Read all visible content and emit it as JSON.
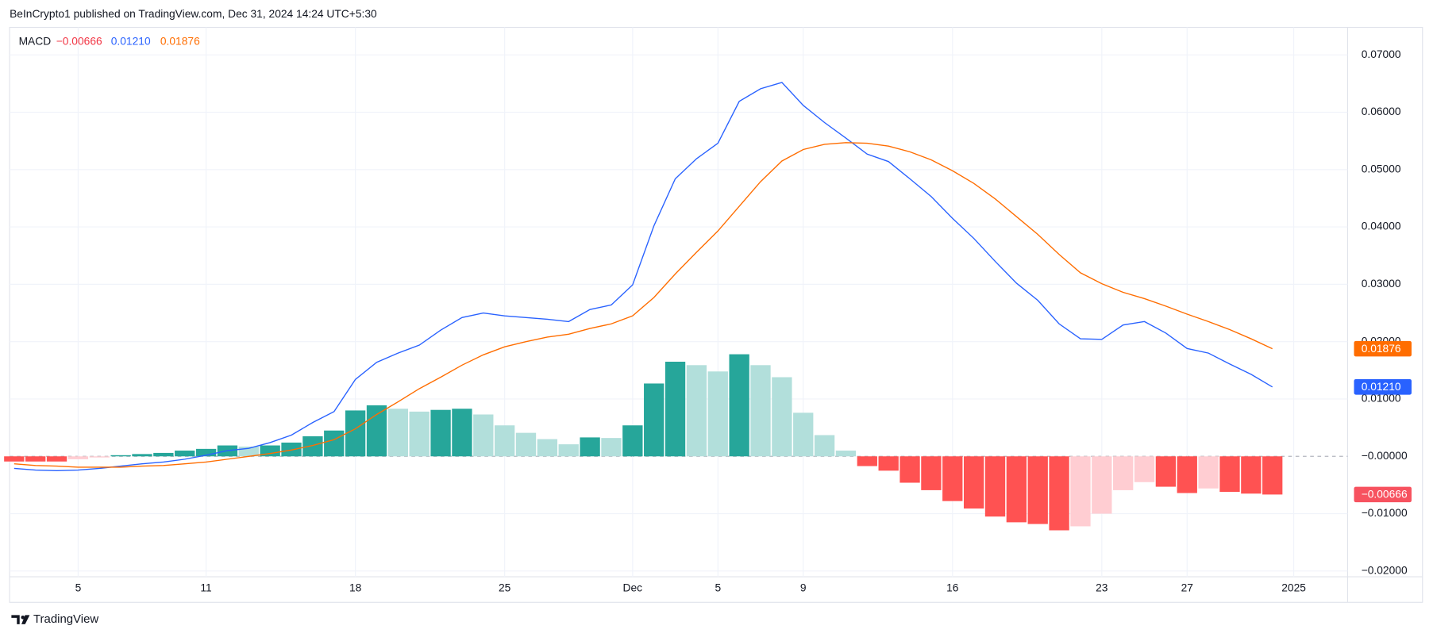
{
  "header": "BeInCrypto1 published on TradingView.com, Dec 31, 2024 14:24 UTC+5:30",
  "footer": "TradingView",
  "chart_data": {
    "type": "macd",
    "title": "MACD",
    "categories": [
      null,
      null,
      null,
      "5",
      null,
      null,
      null,
      null,
      null,
      "11",
      null,
      null,
      null,
      null,
      null,
      null,
      "18",
      null,
      null,
      null,
      null,
      null,
      null,
      "25",
      null,
      null,
      null,
      null,
      null,
      "Dec",
      null,
      null,
      null,
      "5",
      null,
      null,
      null,
      "9",
      null,
      null,
      null,
      null,
      null,
      null,
      "16",
      null,
      null,
      null,
      null,
      null,
      null,
      "23",
      null,
      null,
      null,
      "27",
      null,
      null,
      null,
      null,
      "2025"
    ],
    "series": [
      {
        "type": "bar",
        "values": [
          -0.0009,
          -0.0009,
          -0.0009,
          -0.0005,
          -0.0002,
          0.0002,
          0.0004,
          0.0006,
          0.001,
          0.0013,
          0.0019,
          0.0017,
          0.0019,
          0.0024,
          0.0035,
          0.0045,
          0.008,
          0.0089,
          0.0083,
          0.0078,
          0.0081,
          0.0083,
          0.0073,
          0.0054,
          0.0041,
          0.003,
          0.0021,
          0.0033,
          0.0032,
          0.0054,
          0.0127,
          0.0165,
          0.0159,
          0.0148,
          0.0178,
          0.0159,
          0.0138,
          0.0076,
          0.0037,
          0.001,
          -0.0017,
          -0.0025,
          -0.0046,
          -0.0059,
          -0.0078,
          -0.0091,
          -0.0105,
          -0.0115,
          -0.0118,
          -0.0129,
          -0.0122,
          -0.01,
          -0.0059,
          -0.0045,
          -0.0053,
          -0.0064,
          -0.0056,
          -0.0062,
          -0.0065,
          -0.00666,
          null
        ],
        "value_labels": [
          null,
          null,
          null,
          null,
          null,
          null,
          null,
          null,
          null,
          null,
          null,
          null,
          null,
          null,
          null,
          null,
          null,
          null,
          null,
          null,
          null,
          null,
          null,
          null,
          null,
          null,
          null,
          null,
          null,
          null,
          null,
          null,
          null,
          null,
          null,
          null,
          null,
          null,
          null,
          null,
          null,
          null,
          null,
          null,
          null,
          null,
          null,
          null,
          null,
          null,
          null,
          null,
          null,
          null,
          null,
          null,
          null,
          null,
          null,
          "−0.00666",
          null
        ],
        "color": "#f23645",
        "colors": [
          "#ff5252",
          "#ff5252",
          "#ff5252",
          "#ffcdd2",
          "#ffcdd2",
          "#26a69a",
          "#26a69a",
          "#26a69a",
          "#26a69a",
          "#26a69a",
          "#26a69a",
          "#b2dfdb",
          "#26a69a",
          "#26a69a",
          "#26a69a",
          "#26a69a",
          "#26a69a",
          "#26a69a",
          "#b2dfdb",
          "#b2dfdb",
          "#26a69a",
          "#26a69a",
          "#b2dfdb",
          "#b2dfdb",
          "#b2dfdb",
          "#b2dfdb",
          "#b2dfdb",
          "#26a69a",
          "#b2dfdb",
          "#26a69a",
          "#26a69a",
          "#26a69a",
          "#b2dfdb",
          "#b2dfdb",
          "#26a69a",
          "#b2dfdb",
          "#b2dfdb",
          "#b2dfdb",
          "#b2dfdb",
          "#b2dfdb",
          "#ff5252",
          "#ff5252",
          "#ff5252",
          "#ff5252",
          "#ff5252",
          "#ff5252",
          "#ff5252",
          "#ff5252",
          "#ff5252",
          "#ff5252",
          "#ffcdd2",
          "#ffcdd2",
          "#ffcdd2",
          "#ffcdd2",
          "#ff5252",
          "#ff5252",
          "#ffcdd2",
          "#ff5252",
          "#ff5252",
          "#ff5252",
          null
        ],
        "tag_color": "#f7525f"
      },
      {
        "type": "line",
        "color": "#2962ff",
        "values": [
          -0.0021,
          -0.0024,
          -0.0025,
          -0.0024,
          -0.0021,
          -0.0017,
          -0.0013,
          -0.001,
          -0.0005,
          0.0002,
          0.001,
          0.0014,
          0.0024,
          0.0037,
          0.0059,
          0.0078,
          0.0134,
          0.0164,
          0.018,
          0.0194,
          0.022,
          0.0242,
          0.025,
          0.0245,
          0.0242,
          0.0239,
          0.0235,
          0.0256,
          0.0264,
          0.0299,
          0.0402,
          0.0484,
          0.0519,
          0.0546,
          0.0619,
          0.0641,
          0.0652,
          0.0612,
          0.0582,
          0.0555,
          0.0527,
          0.0514,
          0.0484,
          0.0453,
          0.0415,
          0.038,
          0.034,
          0.0302,
          0.0272,
          0.0231,
          0.0205,
          0.0204,
          0.0229,
          0.0235,
          0.0215,
          0.0188,
          0.018,
          0.0161,
          0.0143,
          0.0121,
          null
        ],
        "value_labels": [
          null,
          null,
          null,
          null,
          null,
          null,
          null,
          null,
          null,
          null,
          null,
          null,
          null,
          null,
          null,
          null,
          null,
          null,
          null,
          null,
          null,
          null,
          null,
          null,
          null,
          null,
          null,
          null,
          null,
          null,
          null,
          null,
          null,
          null,
          null,
          null,
          null,
          null,
          null,
          null,
          null,
          null,
          null,
          null,
          null,
          null,
          null,
          null,
          null,
          null,
          null,
          null,
          null,
          null,
          null,
          null,
          null,
          null,
          null,
          "0.01210",
          null
        ]
      },
      {
        "type": "line",
        "color": "#ff6d00",
        "values": [
          -0.0013,
          -0.0016,
          -0.0017,
          -0.0019,
          -0.0019,
          -0.0019,
          -0.0017,
          -0.0016,
          -0.0013,
          -0.001,
          -0.0005,
          0.0,
          0.0005,
          0.0011,
          0.0019,
          0.0029,
          0.0048,
          0.0073,
          0.0095,
          0.0118,
          0.0138,
          0.0159,
          0.0177,
          0.0191,
          0.02,
          0.0208,
          0.0213,
          0.0223,
          0.0231,
          0.0245,
          0.0277,
          0.0318,
          0.0356,
          0.0393,
          0.0436,
          0.0479,
          0.0515,
          0.0535,
          0.0544,
          0.0547,
          0.0546,
          0.0541,
          0.0531,
          0.0517,
          0.0498,
          0.0476,
          0.0449,
          0.0418,
          0.0387,
          0.0352,
          0.032,
          0.0301,
          0.0286,
          0.0275,
          0.0262,
          0.0248,
          0.0235,
          0.0221,
          0.0205,
          0.01876,
          null
        ],
        "value_labels": [
          null,
          null,
          null,
          null,
          null,
          null,
          null,
          null,
          null,
          null,
          null,
          null,
          null,
          null,
          null,
          null,
          null,
          null,
          null,
          null,
          null,
          null,
          null,
          null,
          null,
          null,
          null,
          null,
          null,
          null,
          null,
          null,
          null,
          null,
          null,
          null,
          null,
          null,
          null,
          null,
          null,
          null,
          null,
          null,
          null,
          null,
          null,
          null,
          null,
          null,
          null,
          null,
          null,
          null,
          null,
          null,
          null,
          null,
          null,
          "0.01876",
          null
        ]
      }
    ],
    "ylim": [
      -0.021,
      0.0748
    ],
    "yticks": [
      {
        "value": 0.07,
        "label": "0.07000"
      },
      {
        "value": 0.06,
        "label": "0.06000"
      },
      {
        "value": 0.05,
        "label": "0.05000"
      },
      {
        "value": 0.04,
        "label": "0.04000"
      },
      {
        "value": 0.03,
        "label": "0.03000"
      },
      {
        "value": 0.02,
        "label": "0.02000"
      },
      {
        "value": 0.01,
        "label": "0.01000"
      },
      {
        "value": 0,
        "label": "−0.00000"
      },
      {
        "value": -0.01,
        "label": "−0.01000"
      },
      {
        "value": -0.02,
        "label": "−0.02000"
      }
    ],
    "grid": true
  }
}
